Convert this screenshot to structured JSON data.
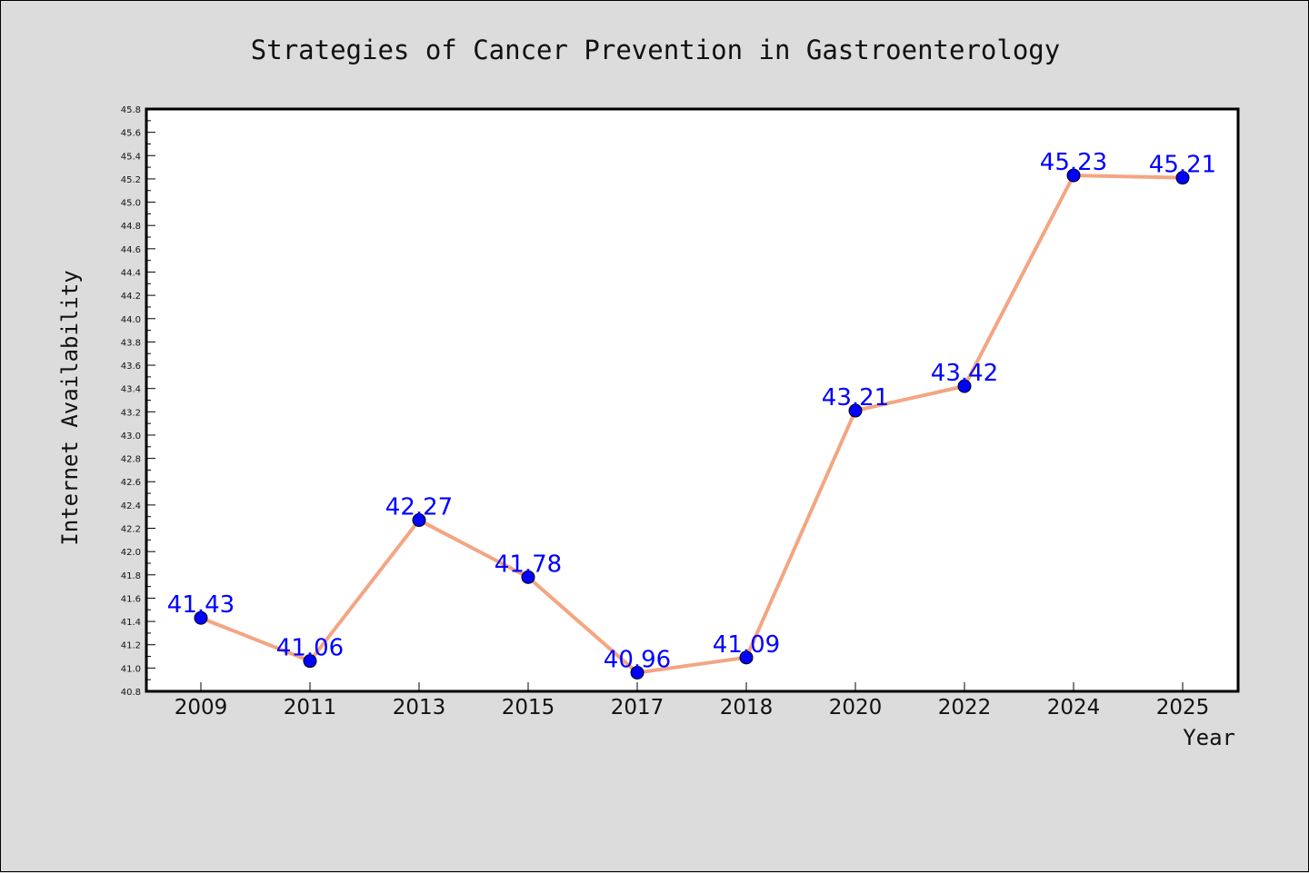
{
  "chart_data": {
    "type": "line",
    "title": "Strategies of Cancer Prevention in Gastroenterology",
    "xlabel": "Year",
    "ylabel": "Internet Availability",
    "categories": [
      "2009",
      "2011",
      "2013",
      "2015",
      "2017",
      "2018",
      "2020",
      "2022",
      "2024",
      "2025"
    ],
    "series": [
      {
        "values": [
          41.43,
          41.06,
          42.27,
          41.78,
          40.96,
          41.09,
          43.21,
          43.42,
          45.23,
          45.21
        ],
        "labels": [
          "41.43",
          "41.06",
          "42.27",
          "41.78",
          "40.96",
          "41.09",
          "43.21",
          "43.42",
          "45.23",
          "45.21"
        ]
      }
    ],
    "ylim": [
      40.8,
      45.8
    ],
    "yticks": [
      "40.8",
      "41.0",
      "41.2",
      "41.4",
      "41.6",
      "41.8",
      "42.0",
      "42.2",
      "42.4",
      "42.6",
      "42.8",
      "43.0",
      "43.2",
      "43.4",
      "43.6",
      "43.8",
      "44.0",
      "44.2",
      "44.4",
      "44.6",
      "44.8",
      "45.0",
      "45.2",
      "45.4",
      "45.6",
      "45.8"
    ],
    "grid": false,
    "colors": {
      "line": "#f4a582",
      "marker": "#0000ff",
      "label": "#0000ff",
      "plot_background": "#ffffff",
      "figure_background": "#dcdcdc"
    }
  }
}
